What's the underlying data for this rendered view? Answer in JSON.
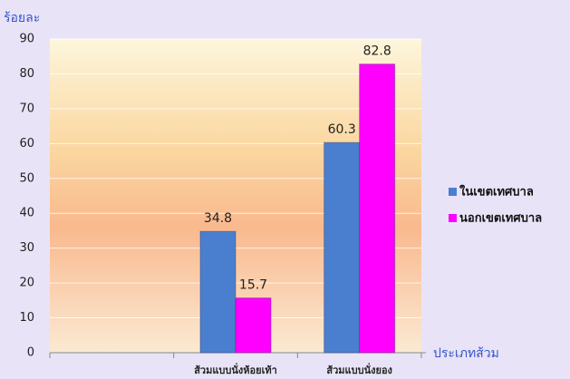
{
  "chart_data": {
    "type": "bar",
    "y_label": "ร้อยละ",
    "x_label": "ประเภทส้วม",
    "categories": [
      null,
      "ส้วมแบบนั่งห้อยเท้า",
      "ส้วมแบบนั่งยอง"
    ],
    "series": [
      {
        "name": "ในเขตเทศบาล",
        "color": "#4a7fd0",
        "values": [
          null,
          34.8,
          60.3
        ]
      },
      {
        "name": "นอกเขตเทศบาล",
        "color": "#ff00ff",
        "values": [
          null,
          15.7,
          82.8
        ]
      }
    ],
    "ylim": [
      0,
      90
    ],
    "yticks": [
      0,
      10,
      20,
      30,
      40,
      50,
      60,
      70,
      80,
      90
    ],
    "grid": true,
    "legend": "right"
  }
}
